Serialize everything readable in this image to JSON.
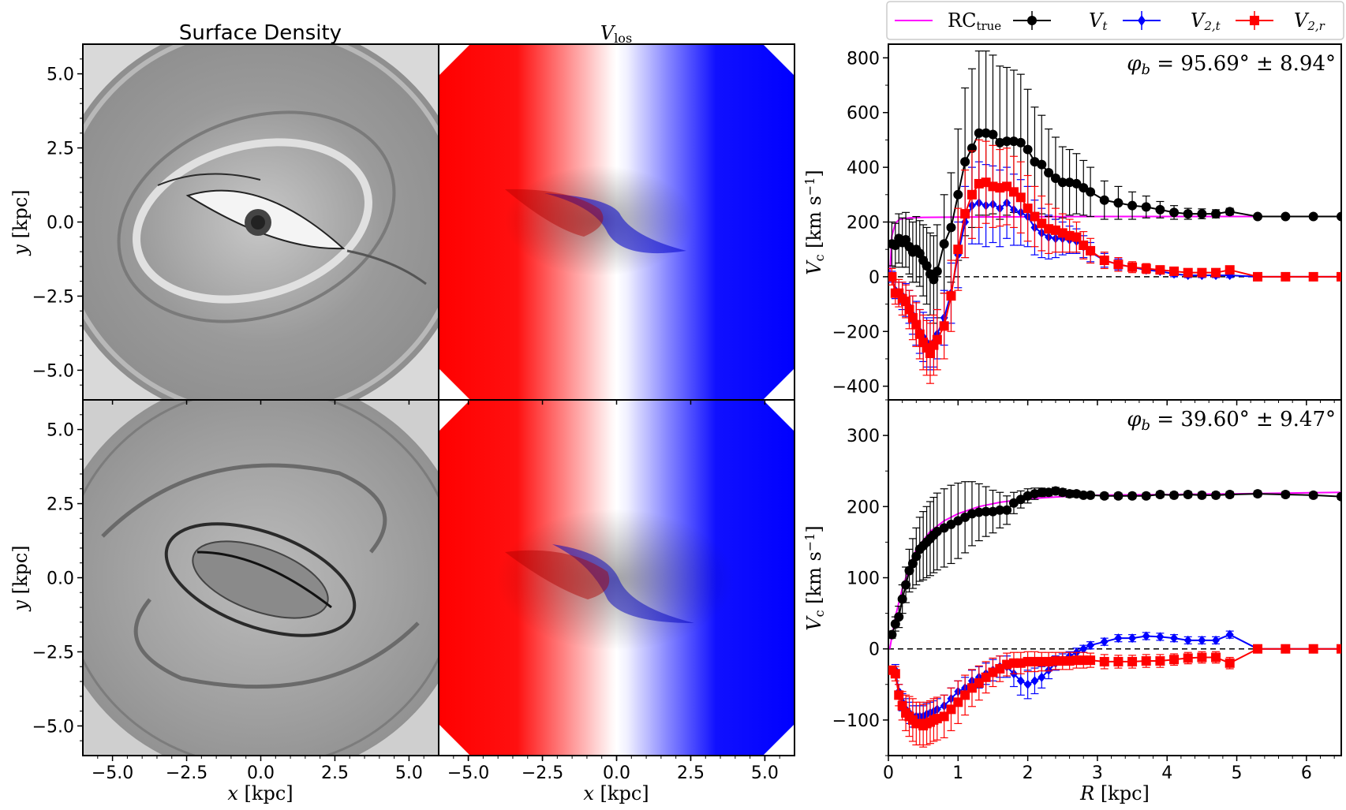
{
  "chart_data": [
    {
      "type": "heatmap",
      "panel": "top-left",
      "title": "Surface Density",
      "colormap": "grayscale",
      "xlabel": "",
      "ylabel": "y [kpc]",
      "xlim": [
        -6,
        6
      ],
      "ylim": [
        -6,
        6
      ],
      "yticks": [
        "5.0",
        "2.5",
        "0.0",
        "−2.5",
        "−5.0"
      ]
    },
    {
      "type": "heatmap",
      "panel": "top-middle",
      "title": "V_los",
      "colormap": "red-white-blue",
      "xlim": [
        -6,
        6
      ],
      "ylim": [
        -6,
        6
      ]
    },
    {
      "type": "heatmap",
      "panel": "bottom-left",
      "colormap": "grayscale",
      "xlabel": "x [kpc]",
      "ylabel": "y [kpc]",
      "xlim": [
        -6,
        6
      ],
      "ylim": [
        -6,
        6
      ],
      "xticks": [
        "−5.0",
        "−2.5",
        "0.0",
        "2.5",
        "5.0"
      ],
      "yticks": [
        "5.0",
        "2.5",
        "0.0",
        "−2.5",
        "−5.0"
      ]
    },
    {
      "type": "heatmap",
      "panel": "bottom-middle",
      "colormap": "red-white-blue",
      "xlabel": "x [kpc]",
      "xlim": [
        -6,
        6
      ],
      "ylim": [
        -6,
        6
      ],
      "xticks": [
        "−5.0",
        "−2.5",
        "0.0",
        "2.5",
        "5.0"
      ]
    },
    {
      "type": "line",
      "panel": "top-right",
      "annotation": "φ_b = 95.69° ± 8.94°",
      "xlabel": "",
      "ylabel": "V_c [km s⁻¹]",
      "xlim": [
        0,
        6.5
      ],
      "ylim": [
        -450,
        850
      ],
      "yticks": [
        "800",
        "600",
        "400",
        "200",
        "0",
        "−200",
        "−400"
      ],
      "legend": {
        "placement": "top",
        "entries": [
          "RC_true",
          "V_t",
          "V_2,t",
          "V_2,r"
        ]
      },
      "series": [
        {
          "name": "V_t",
          "color": "#000000",
          "marker": "circle",
          "x": [
            0.05,
            0.1,
            0.15,
            0.2,
            0.25,
            0.3,
            0.35,
            0.4,
            0.45,
            0.5,
            0.55,
            0.6,
            0.65,
            0.7,
            0.8,
            0.9,
            1.0,
            1.1,
            1.2,
            1.3,
            1.4,
            1.5,
            1.6,
            1.7,
            1.8,
            1.9,
            2.0,
            2.1,
            2.2,
            2.3,
            2.4,
            2.5,
            2.6,
            2.7,
            2.8,
            2.9,
            3.1,
            3.3,
            3.5,
            3.7,
            3.9,
            4.1,
            4.3,
            4.5,
            4.7,
            4.9,
            5.3,
            5.7,
            6.1,
            6.5
          ],
          "y": [
            120,
            115,
            140,
            125,
            135,
            110,
            90,
            100,
            85,
            60,
            40,
            10,
            -10,
            20,
            120,
            180,
            300,
            420,
            470,
            525,
            525,
            520,
            490,
            495,
            495,
            490,
            465,
            420,
            410,
            380,
            360,
            345,
            345,
            340,
            325,
            310,
            280,
            270,
            260,
            255,
            245,
            235,
            230,
            230,
            230,
            238,
            220,
            220,
            220,
            220
          ],
          "yerr": [
            80,
            80,
            90,
            90,
            100,
            100,
            110,
            120,
            120,
            130,
            140,
            150,
            160,
            170,
            180,
            200,
            240,
            270,
            290,
            300,
            300,
            290,
            280,
            270,
            260,
            250,
            220,
            200,
            180,
            160,
            150,
            130,
            120,
            110,
            100,
            90,
            70,
            60,
            50,
            40,
            30,
            25,
            20,
            18,
            15,
            12,
            8,
            8,
            8,
            8
          ]
        },
        {
          "name": "V_2,t",
          "color": "#0000ff",
          "marker": "diamond",
          "x": [
            0.05,
            0.1,
            0.15,
            0.2,
            0.25,
            0.3,
            0.35,
            0.4,
            0.45,
            0.5,
            0.55,
            0.6,
            0.65,
            0.7,
            0.8,
            0.9,
            1.0,
            1.1,
            1.2,
            1.3,
            1.4,
            1.5,
            1.6,
            1.7,
            1.8,
            1.9,
            2.0,
            2.1,
            2.2,
            2.3,
            2.4,
            2.5,
            2.6,
            2.7,
            2.8,
            2.9,
            3.1,
            3.3,
            3.5,
            3.7,
            3.9,
            4.1,
            4.3,
            4.5,
            4.7,
            4.9,
            5.3,
            5.7,
            6.1,
            6.5
          ],
          "y": [
            0,
            -50,
            -60,
            -70,
            -85,
            -110,
            -140,
            -170,
            -200,
            -220,
            -240,
            -250,
            -240,
            -210,
            -150,
            -60,
            80,
            200,
            260,
            270,
            260,
            265,
            250,
            270,
            245,
            235,
            220,
            180,
            160,
            145,
            140,
            140,
            135,
            130,
            110,
            90,
            60,
            45,
            35,
            25,
            20,
            10,
            5,
            5,
            5,
            5,
            0,
            0,
            0,
            0
          ],
          "yerr": [
            20,
            30,
            40,
            50,
            60,
            60,
            70,
            80,
            80,
            90,
            90,
            90,
            90,
            90,
            100,
            110,
            120,
            130,
            140,
            150,
            150,
            140,
            140,
            130,
            130,
            120,
            110,
            100,
            90,
            80,
            70,
            60,
            50,
            45,
            40,
            35,
            25,
            20,
            15,
            12,
            10,
            10,
            8,
            8,
            8,
            8,
            5,
            5,
            5,
            5
          ]
        },
        {
          "name": "V_2,r",
          "color": "#ff0000",
          "marker": "square",
          "x": [
            0.05,
            0.1,
            0.15,
            0.2,
            0.25,
            0.3,
            0.35,
            0.4,
            0.45,
            0.5,
            0.55,
            0.6,
            0.65,
            0.7,
            0.8,
            0.9,
            1.0,
            1.1,
            1.2,
            1.3,
            1.4,
            1.5,
            1.6,
            1.7,
            1.8,
            1.9,
            2.0,
            2.1,
            2.2,
            2.3,
            2.4,
            2.5,
            2.6,
            2.7,
            2.8,
            2.9,
            3.1,
            3.3,
            3.5,
            3.7,
            3.9,
            4.1,
            4.3,
            4.5,
            4.7,
            4.9,
            5.3,
            5.7,
            6.1,
            6.5
          ],
          "y": [
            0,
            -60,
            -60,
            -80,
            -90,
            -120,
            -150,
            -175,
            -210,
            -240,
            -260,
            -280,
            -250,
            -230,
            -180,
            -70,
            100,
            230,
            300,
            340,
            345,
            330,
            325,
            330,
            310,
            290,
            250,
            220,
            195,
            175,
            170,
            160,
            150,
            145,
            115,
            95,
            60,
            45,
            35,
            30,
            25,
            20,
            15,
            15,
            15,
            25,
            0,
            0,
            0,
            0
          ],
          "yerr": [
            30,
            40,
            50,
            60,
            60,
            70,
            80,
            80,
            90,
            100,
            100,
            110,
            110,
            110,
            120,
            130,
            150,
            160,
            160,
            160,
            150,
            150,
            140,
            140,
            130,
            130,
            120,
            110,
            100,
            90,
            80,
            70,
            60,
            55,
            50,
            45,
            30,
            25,
            20,
            18,
            15,
            12,
            10,
            10,
            10,
            10,
            8,
            8,
            8,
            8
          ]
        },
        {
          "name": "RC_true",
          "color": "#ff00ff",
          "marker": "none",
          "x": [
            0.02,
            0.05,
            0.1,
            0.15,
            0.2,
            0.3,
            0.5,
            1.0,
            2.0,
            3.0,
            6.5
          ],
          "y": [
            0,
            150,
            195,
            208,
            212,
            215,
            217,
            218,
            219,
            220,
            220
          ]
        }
      ]
    },
    {
      "type": "line",
      "panel": "bottom-right",
      "annotation": "φ_b = 39.60° ± 9.47°",
      "xlabel": "R [kpc]",
      "ylabel": "V_c [km s⁻¹]",
      "xlim": [
        0,
        6.5
      ],
      "ylim": [
        -150,
        350
      ],
      "xticks": [
        "0",
        "1",
        "2",
        "3",
        "4",
        "5",
        "6"
      ],
      "yticks": [
        "300",
        "200",
        "100",
        "0",
        "−100"
      ],
      "series": [
        {
          "name": "V_t",
          "color": "#000000",
          "marker": "circle",
          "x": [
            0.05,
            0.1,
            0.15,
            0.2,
            0.25,
            0.3,
            0.35,
            0.4,
            0.45,
            0.5,
            0.55,
            0.6,
            0.65,
            0.7,
            0.8,
            0.9,
            1.0,
            1.1,
            1.2,
            1.3,
            1.4,
            1.5,
            1.6,
            1.7,
            1.8,
            1.9,
            2.0,
            2.1,
            2.2,
            2.3,
            2.4,
            2.5,
            2.6,
            2.7,
            2.8,
            2.9,
            3.1,
            3.3,
            3.5,
            3.7,
            3.9,
            4.1,
            4.3,
            4.5,
            4.7,
            4.9,
            5.3,
            5.7,
            6.1,
            6.5
          ],
          "y": [
            20,
            35,
            45,
            70,
            90,
            110,
            120,
            130,
            140,
            145,
            150,
            155,
            160,
            165,
            170,
            175,
            180,
            185,
            190,
            192,
            193,
            193,
            195,
            195,
            205,
            210,
            215,
            218,
            220,
            220,
            222,
            220,
            218,
            218,
            216,
            216,
            215,
            215,
            215,
            215,
            217,
            216,
            217,
            216,
            216,
            217,
            218,
            217,
            216,
            214
          ],
          "yerr": [
            5,
            10,
            15,
            20,
            25,
            30,
            35,
            40,
            45,
            48,
            50,
            52,
            53,
            54,
            55,
            55,
            53,
            50,
            45,
            40,
            35,
            30,
            25,
            20,
            15,
            12,
            10,
            8,
            6,
            5,
            5,
            5,
            5,
            4,
            4,
            4,
            4,
            4,
            4,
            4,
            4,
            4,
            4,
            4,
            4,
            4,
            4,
            4,
            4,
            4
          ]
        },
        {
          "name": "V_2,t",
          "color": "#0000ff",
          "marker": "diamond",
          "x": [
            0.05,
            0.1,
            0.15,
            0.2,
            0.25,
            0.3,
            0.35,
            0.4,
            0.45,
            0.5,
            0.55,
            0.6,
            0.65,
            0.7,
            0.8,
            0.9,
            1.0,
            1.1,
            1.2,
            1.3,
            1.4,
            1.5,
            1.6,
            1.7,
            1.8,
            1.9,
            2.0,
            2.1,
            2.2,
            2.3,
            2.4,
            2.5,
            2.6,
            2.7,
            2.8,
            2.9,
            3.1,
            3.3,
            3.5,
            3.7,
            3.9,
            4.1,
            4.3,
            4.5,
            4.7,
            4.9,
            5.3,
            5.7,
            6.1,
            6.5
          ],
          "y": [
            -30,
            -30,
            -60,
            -75,
            -85,
            -90,
            -95,
            -95,
            -95,
            -95,
            -92,
            -90,
            -88,
            -85,
            -80,
            -70,
            -60,
            -55,
            -45,
            -40,
            -35,
            -30,
            -25,
            -25,
            -35,
            -45,
            -50,
            -45,
            -40,
            -30,
            -20,
            -15,
            -10,
            -5,
            0,
            5,
            10,
            15,
            15,
            18,
            17,
            15,
            12,
            12,
            12,
            20,
            0,
            0,
            0,
            0
          ],
          "yerr": [
            5,
            8,
            10,
            12,
            15,
            15,
            15,
            15,
            15,
            15,
            15,
            15,
            15,
            15,
            15,
            15,
            15,
            15,
            15,
            15,
            15,
            15,
            15,
            15,
            18,
            20,
            20,
            18,
            15,
            12,
            10,
            8,
            6,
            6,
            5,
            5,
            5,
            5,
            5,
            5,
            5,
            5,
            5,
            5,
            5,
            5,
            4,
            4,
            4,
            4
          ]
        },
        {
          "name": "V_2,r",
          "color": "#ff0000",
          "marker": "square",
          "x": [
            0.05,
            0.1,
            0.15,
            0.2,
            0.25,
            0.3,
            0.35,
            0.4,
            0.45,
            0.5,
            0.55,
            0.6,
            0.65,
            0.7,
            0.8,
            0.9,
            1.0,
            1.1,
            1.2,
            1.3,
            1.4,
            1.5,
            1.6,
            1.7,
            1.8,
            1.9,
            2.0,
            2.1,
            2.2,
            2.3,
            2.4,
            2.5,
            2.6,
            2.7,
            2.8,
            2.9,
            3.1,
            3.3,
            3.5,
            3.7,
            3.9,
            4.1,
            4.3,
            4.5,
            4.7,
            4.9,
            5.3,
            5.7,
            6.1,
            6.5
          ],
          "y": [
            -30,
            -35,
            -65,
            -80,
            -90,
            -95,
            -100,
            -105,
            -105,
            -108,
            -105,
            -103,
            -100,
            -98,
            -95,
            -85,
            -75,
            -65,
            -55,
            -48,
            -40,
            -33,
            -28,
            -22,
            -20,
            -20,
            -18,
            -18,
            -18,
            -18,
            -17,
            -17,
            -17,
            -16,
            -16,
            -16,
            -18,
            -18,
            -18,
            -17,
            -17,
            -15,
            -13,
            -12,
            -12,
            -20,
            0,
            0,
            0,
            0
          ],
          "yerr": [
            5,
            10,
            15,
            20,
            25,
            28,
            30,
            30,
            30,
            30,
            30,
            30,
            30,
            30,
            30,
            30,
            30,
            28,
            26,
            24,
            22,
            20,
            18,
            16,
            15,
            15,
            14,
            14,
            13,
            13,
            12,
            12,
            12,
            11,
            11,
            10,
            10,
            9,
            9,
            9,
            9,
            8,
            8,
            8,
            8,
            8,
            5,
            5,
            5,
            5
          ]
        },
        {
          "name": "RC_true",
          "color": "#ff00ff",
          "marker": "none",
          "x": [
            0.02,
            0.1,
            0.2,
            0.3,
            0.4,
            0.6,
            0.8,
            1.0,
            1.3,
            1.6,
            2.0,
            2.5,
            3.0,
            4.0,
            5.0,
            6.5
          ],
          "y": [
            0,
            45,
            85,
            115,
            140,
            165,
            180,
            190,
            200,
            206,
            211,
            214,
            216,
            217,
            218,
            220
          ]
        }
      ]
    }
  ]
}
